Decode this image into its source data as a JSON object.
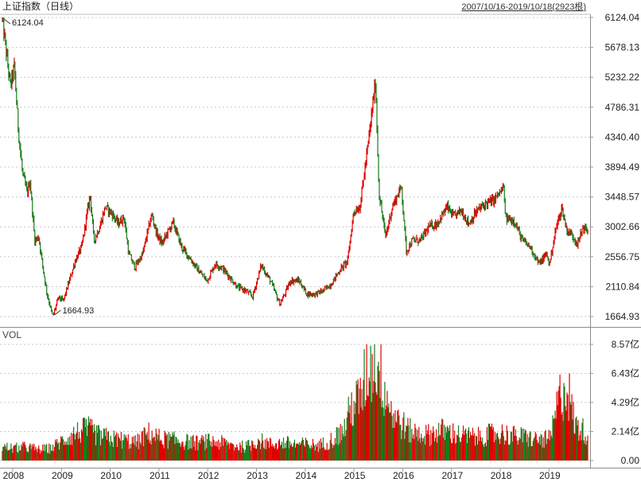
{
  "header": {
    "title": "上证指数（日线）",
    "range_text": "2007/10/16-2019/10/18(2923根)"
  },
  "volume_panel": {
    "label": "VOL"
  },
  "colors": {
    "up": "#e00000",
    "down": "#1a7a1a",
    "grid": "#c8c8c8",
    "axis": "#999999"
  },
  "chart_data": [
    {
      "type": "line",
      "title": "上证指数（日线）",
      "ylim": [
        1664.93,
        6124.04
      ],
      "yticks": [
        "6124.04",
        "5678.13",
        "5232.22",
        "4786.31",
        "4340.40",
        "3894.49",
        "3448.57",
        "3002.66",
        "2556.75",
        "2110.84",
        "1664.93"
      ],
      "xticks": [
        "2008",
        "2009",
        "2010",
        "2011",
        "2012",
        "2013",
        "2014",
        "2015",
        "2016",
        "2017",
        "2018",
        "2019"
      ],
      "annotations": [
        {
          "text": "6124.04",
          "date": "2007-10-16",
          "value": 6124.04
        },
        {
          "text": "1664.93",
          "date": "2008-10-28",
          "value": 1664.93
        }
      ],
      "series": [
        {
          "x": [
            "2007-10-16",
            "2007-11-15",
            "2007-12-15",
            "2008-01-14",
            "2008-02-15",
            "2008-03-15",
            "2008-04-20",
            "2008-05-10",
            "2008-06-15",
            "2008-07-15",
            "2008-08-15",
            "2008-09-15",
            "2008-10-28",
            "2008-12-10",
            "2009-01-15",
            "2009-03-01",
            "2009-04-15",
            "2009-06-01",
            "2009-08-04",
            "2009-09-01",
            "2009-10-15",
            "2009-11-25",
            "2010-01-15",
            "2010-03-01",
            "2010-04-15",
            "2010-05-20",
            "2010-07-05",
            "2010-09-01",
            "2010-11-08",
            "2010-12-15",
            "2011-01-25",
            "2011-03-01",
            "2011-04-18",
            "2011-06-20",
            "2011-08-15",
            "2011-10-24",
            "2011-12-28",
            "2012-02-27",
            "2012-04-15",
            "2012-06-15",
            "2012-08-15",
            "2012-10-15",
            "2012-12-03",
            "2013-02-06",
            "2013-04-15",
            "2013-06-25",
            "2013-08-01",
            "2013-09-12",
            "2013-11-15",
            "2014-01-15",
            "2014-03-15",
            "2014-05-15",
            "2014-07-15",
            "2014-09-15",
            "2014-11-15",
            "2014-12-31",
            "2015-02-15",
            "2015-04-15",
            "2015-06-12",
            "2015-07-08",
            "2015-08-26",
            "2015-10-15",
            "2015-12-23",
            "2016-01-28",
            "2016-03-15",
            "2016-05-15",
            "2016-07-15",
            "2016-09-15",
            "2016-11-29",
            "2017-01-15",
            "2017-03-15",
            "2017-05-10",
            "2017-07-15",
            "2017-09-15",
            "2017-11-14",
            "2018-01-29",
            "2018-02-09",
            "2018-04-15",
            "2018-06-15",
            "2018-08-15",
            "2018-10-19",
            "2018-12-15",
            "2019-01-04",
            "2019-02-25",
            "2019-04-08",
            "2019-05-15",
            "2019-06-15",
            "2019-08-06",
            "2019-09-12",
            "2019-10-18"
          ],
          "values": [
            6124.04,
            5600,
            5100,
            5400,
            4400,
            3800,
            3500,
            3700,
            2800,
            2850,
            2400,
            2000,
            1664.93,
            1950,
            1900,
            2200,
            2500,
            2700,
            3478,
            2800,
            3000,
            3300,
            3200,
            3050,
            3150,
            2600,
            2400,
            2600,
            3186,
            2900,
            2750,
            2900,
            3067,
            2700,
            2550,
            2350,
            2200,
            2450,
            2400,
            2250,
            2100,
            2050,
            1959,
            2430,
            2200,
            1849,
            2000,
            2200,
            2200,
            2000,
            2000,
            2050,
            2150,
            2350,
            2500,
            3234,
            3300,
            4200,
            5178,
            3500,
            2850,
            3300,
            3600,
            2638,
            2800,
            2800,
            3000,
            3050,
            3300,
            3150,
            3250,
            3050,
            3250,
            3350,
            3400,
            3587,
            3129,
            3100,
            2800,
            2700,
            2449,
            2600,
            2440,
            3000,
            3288,
            2950,
            2900,
            2750,
            3000,
            2938
          ]
        }
      ]
    },
    {
      "type": "bar",
      "title": "VOL",
      "ylim": [
        0,
        8.57
      ],
      "yticks": [
        "8.57亿",
        "6.43亿",
        "4.29亿",
        "2.14亿",
        "0.00"
      ],
      "series": [
        {
          "x": [
            "2007-10",
            "2008-01",
            "2008-04",
            "2008-07",
            "2008-10",
            "2009-01",
            "2009-04",
            "2009-07",
            "2009-10",
            "2010-01",
            "2010-04",
            "2010-07",
            "2010-10",
            "2011-01",
            "2011-04",
            "2011-07",
            "2011-10",
            "2012-01",
            "2012-04",
            "2012-07",
            "2012-10",
            "2013-01",
            "2013-04",
            "2013-07",
            "2013-10",
            "2014-01",
            "2014-04",
            "2014-07",
            "2014-10",
            "2014-12",
            "2015-02",
            "2015-04",
            "2015-06",
            "2015-08",
            "2015-10",
            "2015-12",
            "2016-02",
            "2016-04",
            "2016-07",
            "2016-10",
            "2017-01",
            "2017-04",
            "2017-07",
            "2017-10",
            "2018-01",
            "2018-04",
            "2018-07",
            "2018-10",
            "2019-01",
            "2019-03",
            "2019-05",
            "2019-07",
            "2019-10"
          ],
          "values": [
            1.0,
            0.9,
            1.0,
            0.8,
            0.9,
            1.5,
            2.0,
            2.3,
            1.8,
            1.6,
            1.5,
            1.3,
            2.0,
            1.6,
            1.5,
            1.4,
            1.3,
            1.4,
            1.3,
            1.1,
            1.0,
            1.5,
            1.2,
            1.3,
            1.2,
            1.2,
            1.1,
            1.5,
            2.2,
            4.0,
            4.5,
            6.8,
            7.6,
            5.5,
            3.5,
            2.8,
            2.2,
            2.0,
            1.9,
            2.2,
            2.0,
            1.8,
            1.7,
            1.9,
            2.0,
            1.8,
            1.7,
            1.5,
            1.6,
            4.5,
            5.6,
            2.6,
            2.0
          ]
        }
      ]
    }
  ]
}
